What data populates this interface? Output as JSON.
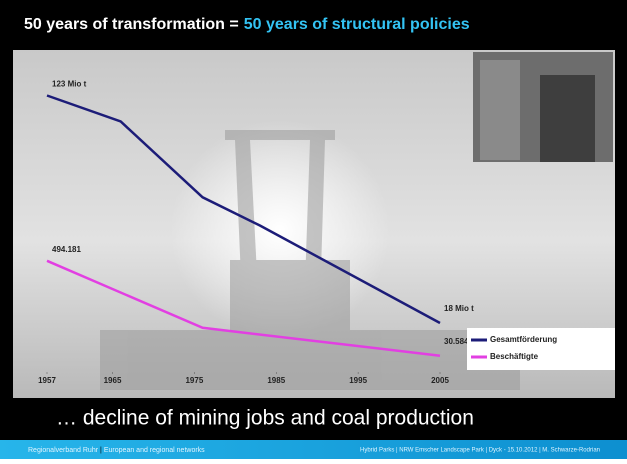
{
  "slide": {
    "title": "50 years of transformation =",
    "title_highlight": "50 years of structural policies",
    "caption": "… decline of mining jobs and coal production",
    "footer_left": [
      "Regionalverband Ruhr",
      "European and regional networks"
    ],
    "footer_right": "Hybrid Parks  |  NRW  Emscher Landscape Park  |  Dyck - 15.10.2012  |  M. Schwarze-Rodrian"
  },
  "chart_data": {
    "type": "line",
    "xlim": [
      1957,
      2005
    ],
    "xticks": [
      1957,
      1965,
      1975,
      1985,
      1995,
      2005
    ],
    "ylim": [
      0,
      144
    ],
    "y2lim": [
      0,
      1523000
    ],
    "legend": "lower right",
    "series": [
      {
        "name": "Gesamtförderung",
        "color": "#1c1c78",
        "x": [
          1957,
          1966,
          1976,
          1983,
          2005
        ],
        "values": [
          123,
          111,
          76,
          63,
          18
        ],
        "value_labels": [
          "123 Mio t",
          null,
          null,
          null,
          "18 Mio t"
        ]
      },
      {
        "name": "Beschäftigte",
        "color": "#e23fe2",
        "axis": "y2",
        "x": [
          1957,
          1976,
          2005
        ],
        "values": [
          494181,
          167000,
          30584
        ],
        "value_labels": [
          "494.181",
          null,
          "30.584"
        ]
      }
    ]
  }
}
